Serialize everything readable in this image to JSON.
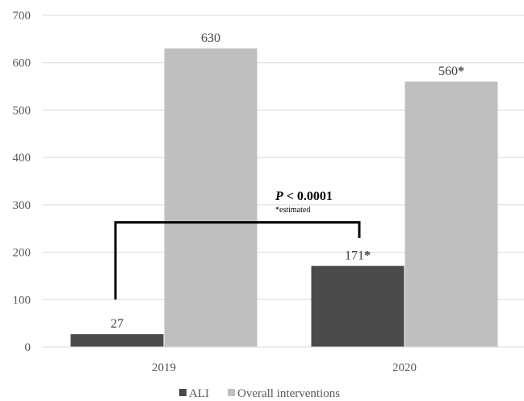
{
  "chart_data": {
    "type": "bar",
    "categories": [
      "2019",
      "2020"
    ],
    "series": [
      {
        "name": "ALI",
        "values": [
          27,
          171
        ],
        "labels": [
          "27",
          "171"
        ],
        "estimated": [
          false,
          true
        ],
        "color": "#4a4a4a"
      },
      {
        "name": "Overall interventions",
        "values": [
          630,
          560
        ],
        "labels": [
          "630",
          "560"
        ],
        "estimated": [
          false,
          true
        ],
        "color": "#bfbfbf"
      }
    ],
    "estimated_marker": "*",
    "ylim": [
      0,
      700
    ],
    "yticks": [
      "0",
      "100",
      "200",
      "300",
      "400",
      "500",
      "600",
      "700"
    ],
    "ytick_values": [
      0,
      100,
      200,
      300,
      400,
      500,
      600,
      700
    ],
    "grid": true,
    "legend": "bottom",
    "annotation": {
      "p_letter": "P",
      "p_rest": " < 0.0001",
      "note": "*estimated"
    }
  }
}
